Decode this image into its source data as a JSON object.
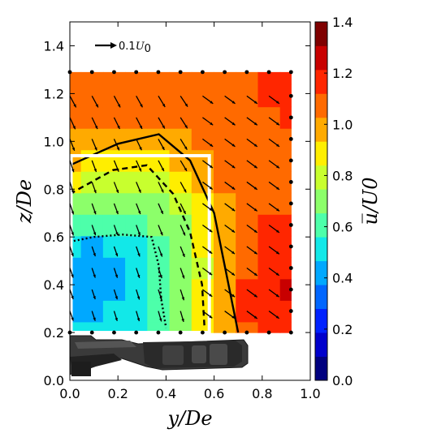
{
  "chart_data": {
    "type": "heatmap",
    "xlabel": "y/De",
    "ylabel": "z/De",
    "xlim": [
      0.0,
      1.0
    ],
    "ylim": [
      0.0,
      1.5
    ],
    "x_ticks": [
      "0.0",
      "0.2",
      "0.4",
      "0.6",
      "0.8",
      "1.0"
    ],
    "y_ticks": [
      "0.0",
      "0.2",
      "0.4",
      "0.6",
      "0.8",
      "1.0",
      "1.2",
      "1.4"
    ],
    "colorbar": {
      "label": "u̅/U0",
      "range": [
        0.0,
        1.4
      ],
      "ticks": [
        "0.0",
        "0.2",
        "0.4",
        "0.6",
        "0.8",
        "1.0",
        "1.2",
        "1.4"
      ],
      "colors": [
        "#00007f",
        "#0000cc",
        "#0022ff",
        "#0066ff",
        "#00a8ff",
        "#12e8e8",
        "#4dffaa",
        "#8cff6a",
        "#c8ff2e",
        "#ffee00",
        "#ffaa00",
        "#ff6a00",
        "#ff2600",
        "#c80000",
        "#7f0000"
      ]
    },
    "reference_vector": {
      "label_prefix": "0.1",
      "label_var": "U",
      "label_sub": "0",
      "magnitude": 0.1
    },
    "measurement_region": {
      "y": [
        0.0,
        0.92
      ],
      "z": [
        0.2,
        1.29
      ]
    },
    "grid_y": [
      0.0,
      0.092,
      0.184,
      0.276,
      0.368,
      0.46,
      0.552,
      0.644,
      0.736,
      0.828,
      0.92
    ],
    "grid_z": [
      0.2,
      0.29,
      0.38,
      0.47,
      0.56,
      0.65,
      0.74,
      0.83,
      0.92,
      1.01,
      1.1,
      1.19,
      1.29
    ],
    "velocity_field": [
      [
        0.48,
        0.48,
        0.52,
        0.55,
        0.6,
        0.72,
        0.88,
        1.02,
        1.1,
        1.14,
        1.16
      ],
      [
        0.45,
        0.45,
        0.48,
        0.52,
        0.58,
        0.7,
        0.86,
        1.02,
        1.12,
        1.18,
        1.2
      ],
      [
        0.44,
        0.44,
        0.46,
        0.5,
        0.56,
        0.68,
        0.84,
        1.0,
        1.12,
        1.2,
        1.22
      ],
      [
        0.44,
        0.44,
        0.46,
        0.5,
        0.56,
        0.66,
        0.82,
        0.98,
        1.1,
        1.18,
        1.2
      ],
      [
        0.48,
        0.46,
        0.48,
        0.52,
        0.58,
        0.68,
        0.84,
        0.98,
        1.08,
        1.14,
        1.16
      ],
      [
        0.62,
        0.6,
        0.6,
        0.62,
        0.66,
        0.74,
        0.88,
        1.0,
        1.08,
        1.12,
        1.12
      ],
      [
        0.74,
        0.72,
        0.7,
        0.7,
        0.72,
        0.8,
        0.92,
        1.02,
        1.08,
        1.1,
        1.1
      ],
      [
        0.84,
        0.82,
        0.8,
        0.78,
        0.8,
        0.86,
        0.96,
        1.04,
        1.08,
        1.1,
        1.1
      ],
      [
        0.94,
        0.92,
        0.9,
        0.88,
        0.88,
        0.94,
        1.02,
        1.06,
        1.08,
        1.1,
        1.1
      ],
      [
        1.02,
        1.0,
        0.98,
        0.98,
        1.0,
        1.02,
        1.06,
        1.08,
        1.1,
        1.1,
        1.1
      ],
      [
        1.08,
        1.06,
        1.06,
        1.06,
        1.06,
        1.08,
        1.08,
        1.1,
        1.1,
        1.1,
        1.12
      ],
      [
        1.1,
        1.1,
        1.1,
        1.1,
        1.1,
        1.1,
        1.1,
        1.1,
        1.1,
        1.12,
        1.14
      ],
      [
        1.1,
        1.1,
        1.1,
        1.1,
        1.1,
        1.1,
        1.1,
        1.1,
        1.1,
        1.12,
        1.16
      ]
    ],
    "contour_solid": [
      [
        0.0,
        0.9
      ],
      [
        0.2,
        0.99
      ],
      [
        0.37,
        1.03
      ],
      [
        0.5,
        0.92
      ],
      [
        0.6,
        0.7
      ],
      [
        0.64,
        0.5
      ],
      [
        0.7,
        0.2
      ]
    ],
    "contour_dashed": [
      [
        0.0,
        0.78
      ],
      [
        0.18,
        0.88
      ],
      [
        0.32,
        0.9
      ],
      [
        0.43,
        0.78
      ],
      [
        0.5,
        0.62
      ],
      [
        0.55,
        0.4
      ],
      [
        0.56,
        0.22
      ]
    ],
    "contour_dotted": [
      [
        0.0,
        0.58
      ],
      [
        0.1,
        0.6
      ],
      [
        0.22,
        0.61
      ],
      [
        0.34,
        0.6
      ],
      [
        0.37,
        0.48
      ],
      [
        0.38,
        0.34
      ],
      [
        0.4,
        0.22
      ]
    ],
    "white_box": {
      "y": [
        0.0,
        0.58
      ],
      "z": [
        0.2,
        0.94
      ]
    },
    "vehicle_silhouette_z_top": 0.2,
    "grid": false
  }
}
